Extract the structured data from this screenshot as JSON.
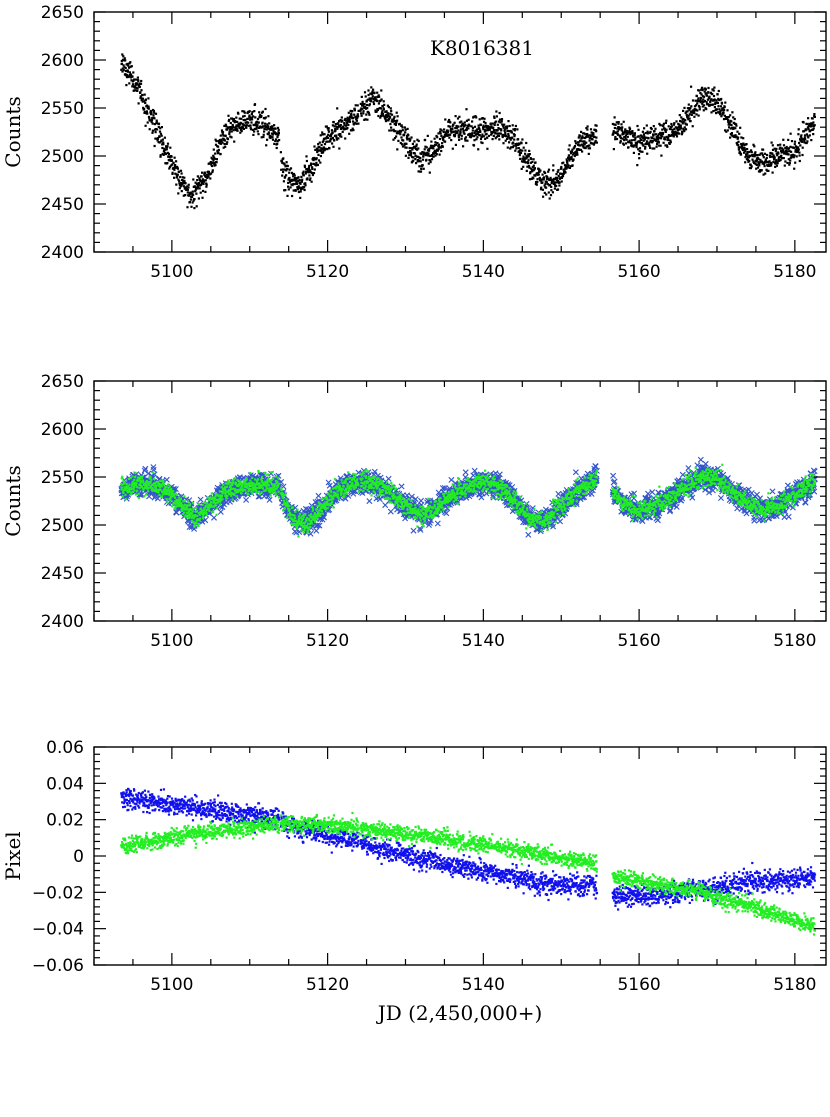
{
  "chart_data": [
    {
      "type": "scatter",
      "title": "",
      "annotation": "K8016381",
      "xlabel": "",
      "ylabel": "Counts",
      "xlim": [
        5090,
        5184
      ],
      "ylim": [
        2400,
        2650
      ],
      "xticks": [
        5100,
        5120,
        5140,
        5160,
        5180
      ],
      "yticks": [
        2400,
        2450,
        2500,
        2550,
        2600,
        2650
      ],
      "grid": false,
      "x_data_segments": [
        [
          5093.5,
          5113.8
        ],
        [
          5114.0,
          5124.0
        ],
        [
          5124.2,
          5154.6
        ],
        [
          5156.6,
          5182.6
        ]
      ],
      "series": [
        {
          "color": "#000000",
          "marker": "dot",
          "x": [
            5093.5,
            5095,
            5097,
            5099,
            5101,
            5102.5,
            5104,
            5106,
            5108,
            5110,
            5112,
            5113.8,
            5114.2,
            5115.5,
            5116.5,
            5118,
            5120,
            5122,
            5124,
            5124.5,
            5126,
            5128,
            5130,
            5132,
            5134,
            5136,
            5138,
            5140,
            5142,
            5144,
            5146,
            5147.5,
            5149,
            5151,
            5153,
            5154.6,
            5156.6,
            5158,
            5160,
            5162,
            5164,
            5166,
            5168,
            5170,
            5172,
            5174,
            5176,
            5178,
            5180,
            5182.6
          ],
          "y": [
            2600,
            2580,
            2545,
            2510,
            2475,
            2460,
            2472,
            2510,
            2532,
            2537,
            2530,
            2518,
            2488,
            2473,
            2470,
            2490,
            2518,
            2530,
            2540,
            2552,
            2558,
            2540,
            2515,
            2495,
            2510,
            2528,
            2525,
            2527,
            2530,
            2518,
            2490,
            2475,
            2470,
            2495,
            2518,
            2523,
            2527,
            2522,
            2513,
            2520,
            2522,
            2538,
            2560,
            2556,
            2530,
            2500,
            2492,
            2500,
            2505,
            2535
          ],
          "noise": 7
        }
      ]
    },
    {
      "type": "scatter",
      "title": "",
      "xlabel": "",
      "ylabel": "Counts",
      "xlim": [
        5090,
        5184
      ],
      "ylim": [
        2400,
        2650
      ],
      "xticks": [
        5100,
        5120,
        5140,
        5160,
        5180
      ],
      "yticks": [
        2400,
        2450,
        2500,
        2550,
        2600,
        2650
      ],
      "grid": false,
      "x_data_segments": [
        [
          5093.5,
          5113.8
        ],
        [
          5114.0,
          5124.0
        ],
        [
          5124.2,
          5154.6
        ],
        [
          5156.6,
          5182.6
        ]
      ],
      "series": [
        {
          "color": "#3355cc",
          "marker": "cross",
          "x": [
            5093.5,
            5096,
            5099,
            5101,
            5103,
            5105,
            5107,
            5109,
            5111,
            5113.8,
            5114.2,
            5115.5,
            5117,
            5119,
            5121,
            5123,
            5124,
            5124.5,
            5126,
            5128,
            5130,
            5132,
            5134,
            5136,
            5138,
            5140,
            5142,
            5144,
            5146,
            5148,
            5150,
            5152,
            5154.6,
            5156.6,
            5158,
            5160,
            5162,
            5164,
            5166,
            5168,
            5170,
            5172,
            5174,
            5176,
            5178,
            5180,
            5182.6
          ],
          "y": [
            2538,
            2543,
            2538,
            2522,
            2508,
            2522,
            2535,
            2540,
            2543,
            2540,
            2530,
            2508,
            2500,
            2515,
            2535,
            2542,
            2546,
            2545,
            2543,
            2535,
            2520,
            2510,
            2518,
            2532,
            2540,
            2545,
            2540,
            2525,
            2505,
            2505,
            2520,
            2535,
            2548,
            2535,
            2522,
            2515,
            2520,
            2528,
            2540,
            2550,
            2548,
            2535,
            2522,
            2515,
            2522,
            2532,
            2545
          ],
          "noise": 6
        },
        {
          "color": "#22ee22",
          "marker": "dot",
          "x": [
            5093.5,
            5096,
            5099,
            5101,
            5103,
            5105,
            5107,
            5109,
            5111,
            5113.8,
            5114.2,
            5115.5,
            5117,
            5119,
            5121,
            5123,
            5124,
            5124.5,
            5126,
            5128,
            5130,
            5132,
            5134,
            5136,
            5138,
            5140,
            5142,
            5144,
            5146,
            5148,
            5150,
            5152,
            5154.6,
            5156.6,
            5158,
            5160,
            5162,
            5164,
            5166,
            5168,
            5170,
            5172,
            5174,
            5176,
            5178,
            5180,
            5182.6
          ],
          "y": [
            2538,
            2543,
            2538,
            2522,
            2508,
            2522,
            2535,
            2540,
            2543,
            2540,
            2530,
            2508,
            2500,
            2515,
            2535,
            2542,
            2546,
            2545,
            2543,
            2535,
            2520,
            2510,
            2518,
            2532,
            2540,
            2545,
            2540,
            2525,
            2505,
            2505,
            2520,
            2535,
            2548,
            2535,
            2522,
            2515,
            2520,
            2528,
            2540,
            2550,
            2548,
            2535,
            2522,
            2515,
            2522,
            2532,
            2545
          ],
          "noise": 5
        }
      ]
    },
    {
      "type": "scatter",
      "title": "",
      "xlabel": "JD (2,450,000+)",
      "ylabel": "Pixel",
      "xlim": [
        5090,
        5184
      ],
      "ylim": [
        -0.06,
        0.06
      ],
      "xticks": [
        5100,
        5120,
        5140,
        5160,
        5180
      ],
      "yticks": [
        -0.06,
        -0.04,
        -0.02,
        0,
        0.02,
        0.04,
        0.06
      ],
      "grid": false,
      "x_data_segments": [
        [
          5093.5,
          5113.8
        ],
        [
          5114.0,
          5124.0
        ],
        [
          5124.2,
          5154.6
        ],
        [
          5156.6,
          5182.6
        ]
      ],
      "series": [
        {
          "color": "#1111ee",
          "marker": "dot",
          "x": [
            5093.5,
            5100,
            5106,
            5113.8,
            5114.2,
            5120,
            5124,
            5124.2,
            5130,
            5136,
            5142,
            5148,
            5154.6,
            5156.6,
            5162,
            5168,
            5174,
            5182.6
          ],
          "y": [
            0.032,
            0.028,
            0.025,
            0.021,
            0.017,
            0.012,
            0.008,
            0.007,
            0.001,
            -0.005,
            -0.01,
            -0.015,
            -0.016,
            -0.022,
            -0.022,
            -0.018,
            -0.015,
            -0.012
          ],
          "noise": 0.0028
        },
        {
          "color": "#22ee22",
          "marker": "dot",
          "x": [
            5093.5,
            5100,
            5106,
            5113.8,
            5114.2,
            5120,
            5124,
            5124.2,
            5130,
            5136,
            5142,
            5148,
            5154.6,
            5156.6,
            5162,
            5168,
            5174,
            5182.6
          ],
          "y": [
            0.005,
            0.01,
            0.014,
            0.018,
            0.018,
            0.017,
            0.016,
            0.015,
            0.012,
            0.009,
            0.005,
            0.0,
            -0.004,
            -0.011,
            -0.015,
            -0.02,
            -0.027,
            -0.039
          ],
          "noise": 0.0022
        }
      ]
    }
  ]
}
